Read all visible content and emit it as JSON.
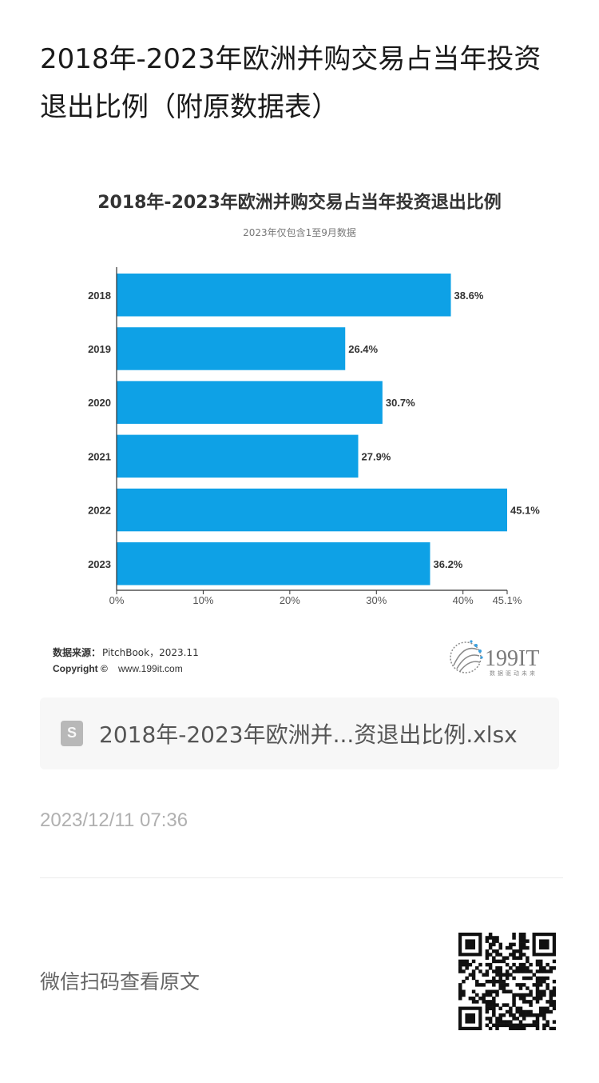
{
  "page": {
    "title": "2018年-2023年欧洲并购交易占当年投资退出比例（附原数据表）",
    "file_name": "2018年-2023年欧洲并...资退出比例.xlsx",
    "timestamp": "2023/12/11 07:36",
    "read_original": "微信扫码查看原文"
  },
  "colors": {
    "bar": "#0ea1e6",
    "title_text": "#333333",
    "axis": "#333333"
  },
  "chart_data": {
    "type": "bar",
    "orientation": "horizontal",
    "title": "2018年-2023年欧洲并购交易占当年投资退出比例",
    "subtitle": "2023年仅包含1至9月数据",
    "categories": [
      "2018",
      "2019",
      "2020",
      "2021",
      "2022",
      "2023"
    ],
    "values": [
      38.6,
      26.4,
      30.7,
      27.9,
      45.1,
      36.2
    ],
    "value_labels": [
      "38.6%",
      "26.4%",
      "30.7%",
      "27.9%",
      "45.1%",
      "36.2%"
    ],
    "x_ticks": [
      0,
      10,
      20,
      30,
      40,
      45.1
    ],
    "x_tick_labels": [
      "0%",
      "10%",
      "20%",
      "30%",
      "40%",
      "45.1%"
    ],
    "xlim": [
      0,
      45.1
    ],
    "grid": false,
    "source_label": "数据来源：",
    "source_value": "PitchBook，2023.11",
    "copyright_label": "Copyright ©",
    "copyright_value": "www.199it.com",
    "logo_text": "199IT",
    "logo_tagline": "数据驱动未来"
  }
}
